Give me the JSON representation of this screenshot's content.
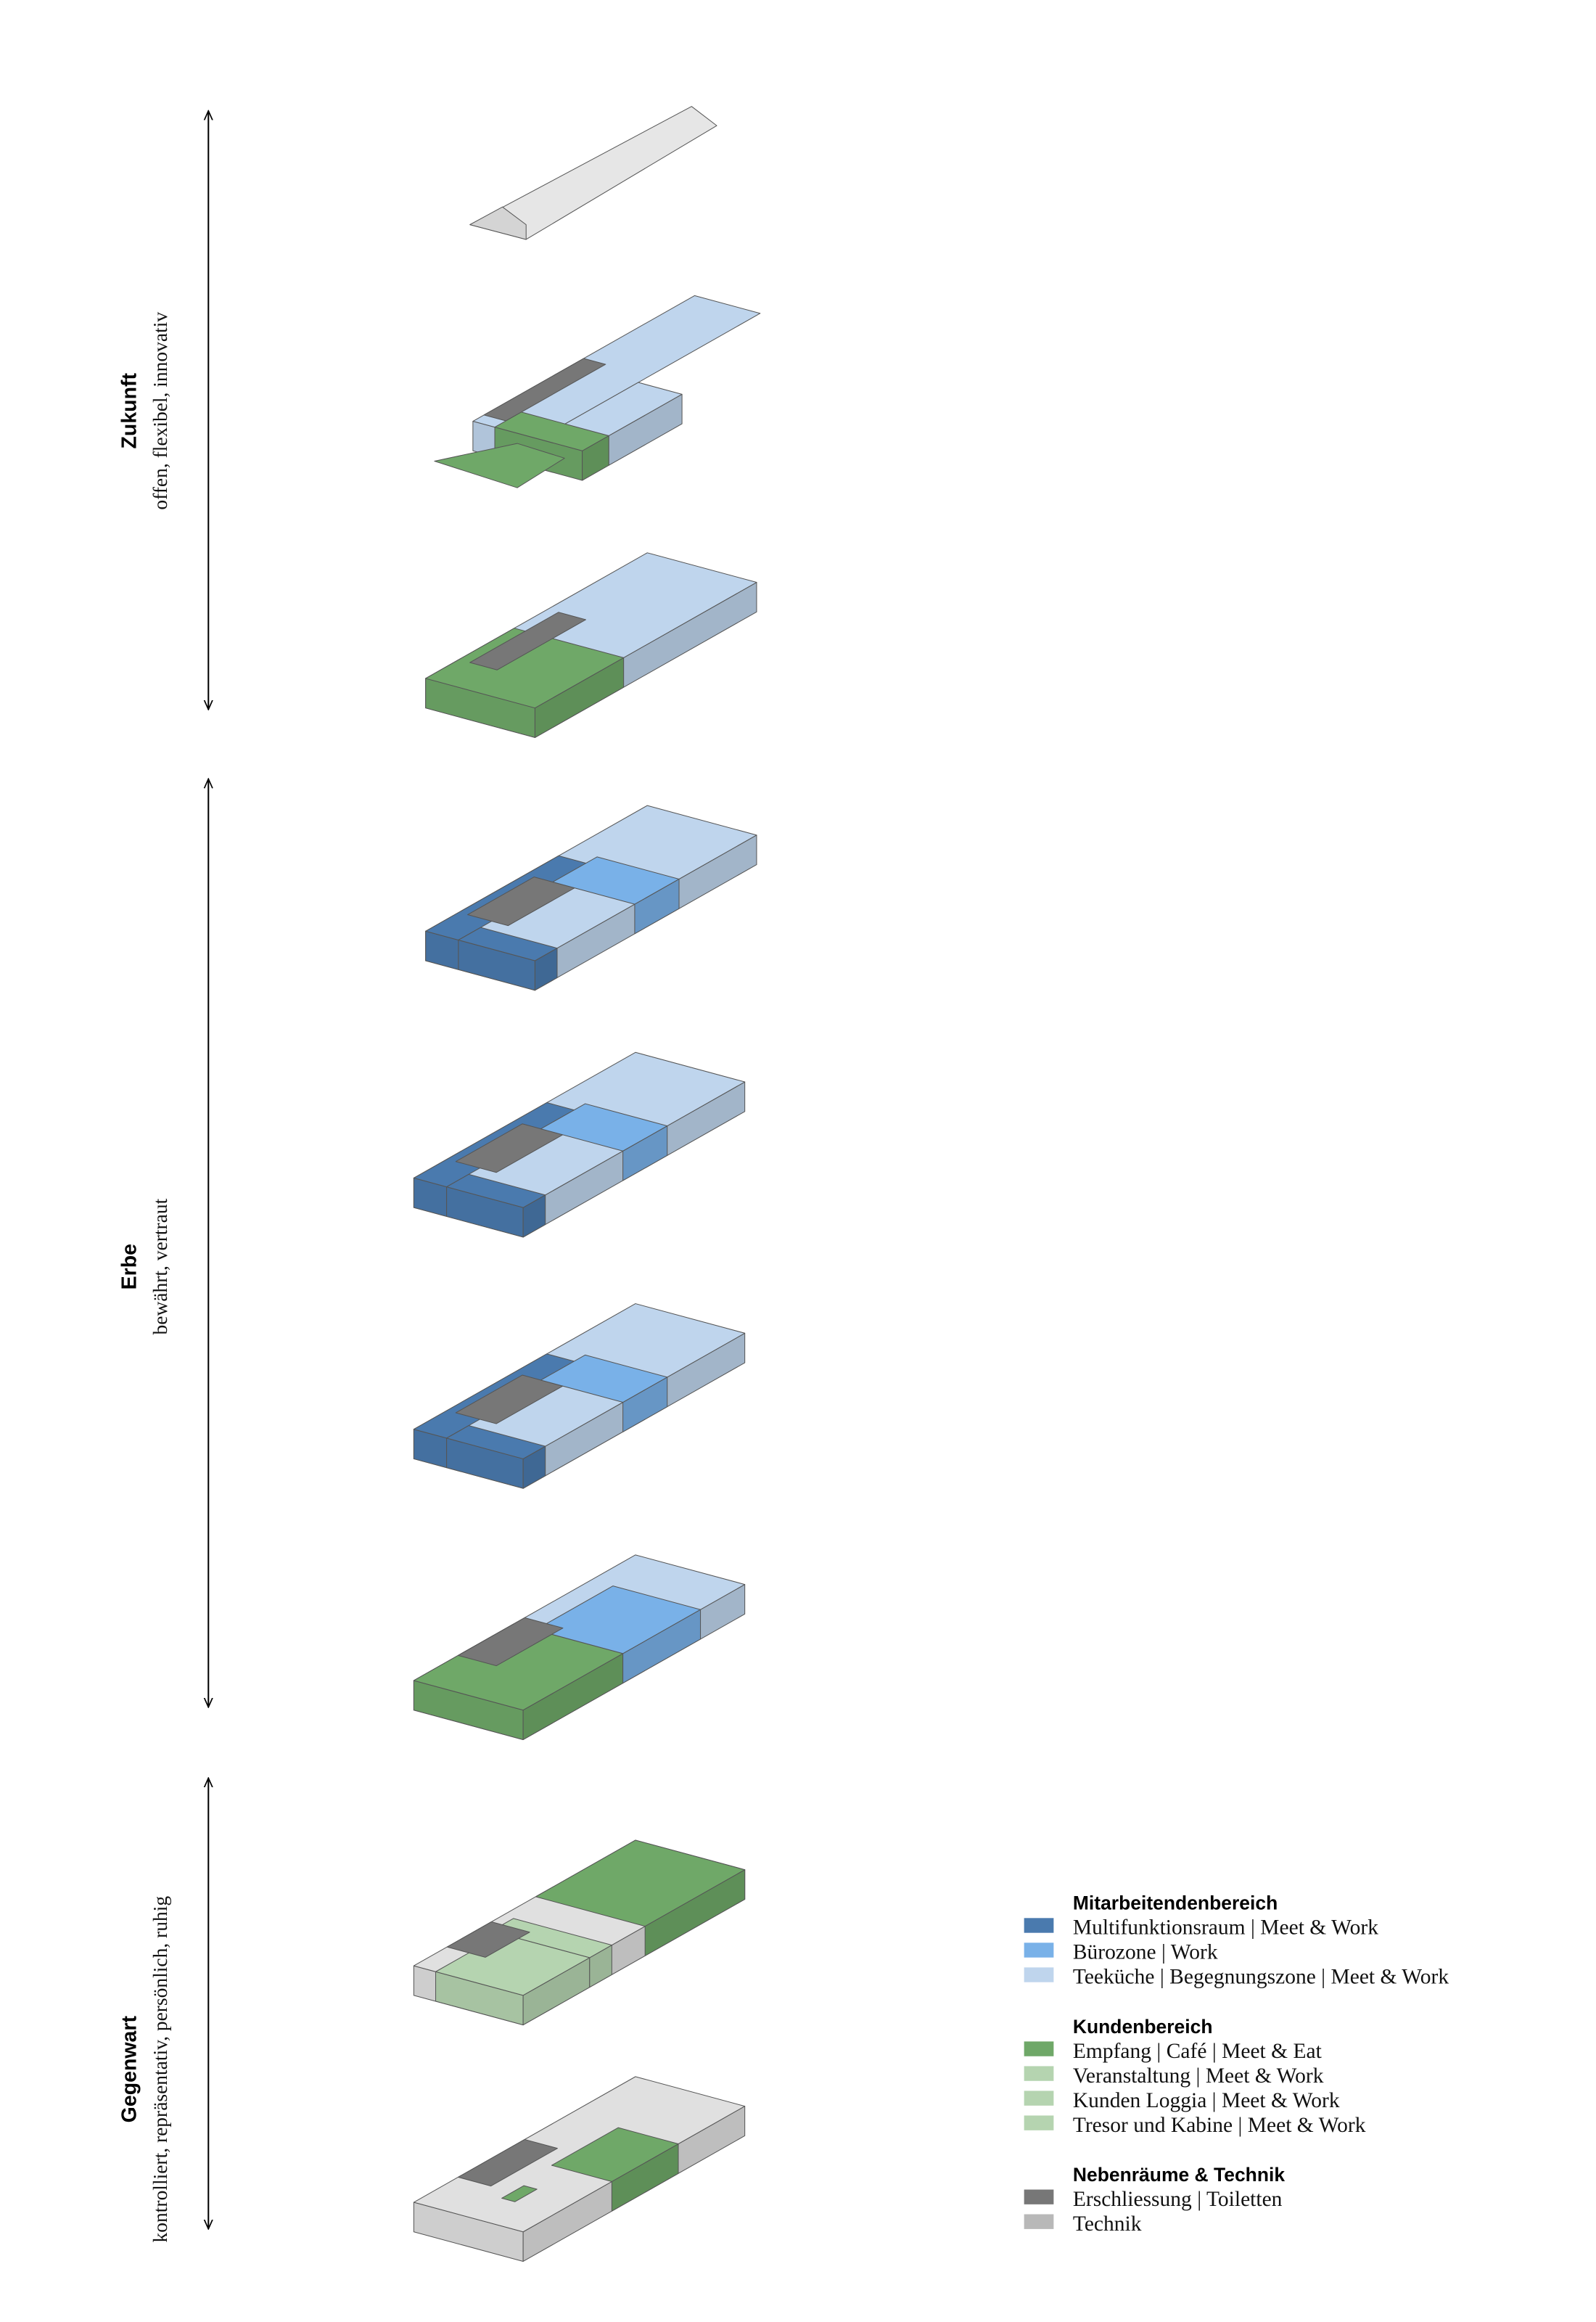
{
  "phases": [
    {
      "title": "Zukunft",
      "subtitle": "offen, flexibel, innovativ"
    },
    {
      "title": "Erbe",
      "subtitle": "bewährt, vertraut"
    },
    {
      "title": "Gegenwart",
      "subtitle": "kontrolliert, repräsentativ, persönlich, ruhig"
    }
  ],
  "legend": [
    {
      "heading": "Mitarbeitendenbereich",
      "items": [
        {
          "label": "Multifunktionsraum | Meet & Work",
          "color": "#4a7aae"
        },
        {
          "label": "Bürozone | Work",
          "color": "#79b1e8"
        },
        {
          "label": "Teeküche | Begegnungszone | Meet & Work",
          "color": "#bfd5ed"
        }
      ]
    },
    {
      "heading": "Kundenbereich",
      "items": [
        {
          "label": "Empfang | Café  | Meet & Eat",
          "color": "#6fa868"
        },
        {
          "label": "Veranstaltung | Meet & Work",
          "color": "#b5d4b0"
        },
        {
          "label": "Kunden Loggia | Meet & Work",
          "color": "#b5d4b0"
        },
        {
          "label": "Tresor und Kabine | Meet & Work",
          "color": "#b5d4b0"
        }
      ]
    },
    {
      "heading": "Nebenräume & Technik",
      "items": [
        {
          "label": "Erschliessung | Toiletten",
          "color": "#777777"
        },
        {
          "label": "Technik",
          "color": "#b8b8b8"
        }
      ]
    }
  ]
}
